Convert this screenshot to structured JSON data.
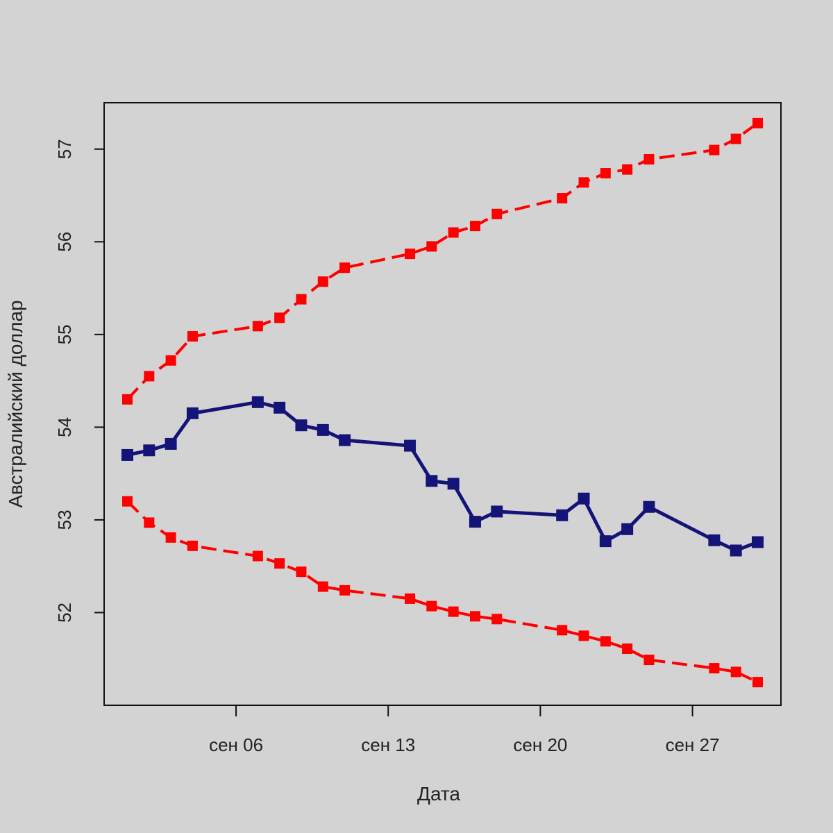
{
  "chart_data": {
    "type": "line",
    "title": "",
    "xlabel": "Дата",
    "ylabel": "Австралийский доллар",
    "background_color": "#d3d3d3",
    "x_ticks": [
      {
        "day": 6,
        "label": "сен 06"
      },
      {
        "day": 13,
        "label": "сен 13"
      },
      {
        "day": 20,
        "label": "сен 20"
      },
      {
        "day": 27,
        "label": "сен 27"
      }
    ],
    "y_ticks": [
      52,
      53,
      54,
      55,
      56,
      57
    ],
    "xlim": [
      -0.07,
      31.07
    ],
    "ylim": [
      51.0,
      57.5
    ],
    "x": [
      1,
      2,
      3,
      4,
      7,
      8,
      9,
      10,
      11,
      14,
      15,
      16,
      17,
      18,
      21,
      22,
      23,
      24,
      25,
      28,
      29,
      30
    ],
    "series": [
      {
        "name": "upper",
        "color": "#ff0000",
        "style": "dashed",
        "values": [
          54.3,
          54.55,
          54.72,
          54.98,
          55.09,
          55.18,
          55.38,
          55.57,
          55.72,
          55.87,
          55.95,
          56.1,
          56.17,
          56.3,
          56.47,
          56.64,
          56.74,
          56.78,
          56.89,
          56.99,
          57.11,
          57.28
        ]
      },
      {
        "name": "rate",
        "color": "#141478",
        "style": "solid",
        "values": [
          53.7,
          53.75,
          53.82,
          54.15,
          54.27,
          54.21,
          54.02,
          53.97,
          53.86,
          53.8,
          53.42,
          53.39,
          52.98,
          53.09,
          53.05,
          53.23,
          52.77,
          52.9,
          53.14,
          52.78,
          52.67,
          52.76
        ]
      },
      {
        "name": "lower",
        "color": "#ff0000",
        "style": "dashed",
        "values": [
          53.2,
          52.97,
          52.81,
          52.72,
          52.61,
          52.53,
          52.44,
          52.28,
          52.24,
          52.15,
          52.07,
          52.01,
          51.96,
          51.93,
          51.81,
          51.75,
          51.69,
          51.61,
          51.49,
          51.4,
          51.36,
          51.25
        ]
      }
    ]
  }
}
